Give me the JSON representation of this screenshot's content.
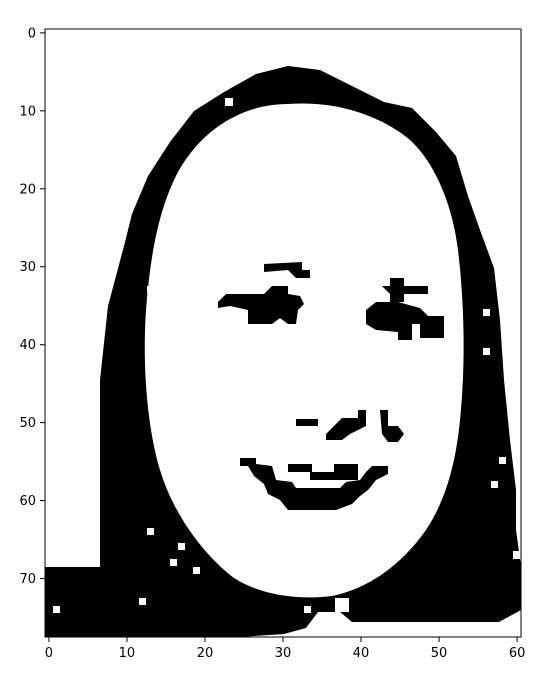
{
  "image": {
    "kind": "binary raster image shown with matplotlib imshow",
    "subject": "high-contrast black-and-white portrait of a smiling face framed by long dark hair",
    "colors": {
      "foreground": "#000000",
      "background": "#ffffff",
      "frame": "#000000"
    },
    "grid": {
      "columns": 61,
      "rows": 78
    }
  },
  "axes": {
    "x_ticks": [
      "0",
      "10",
      "20",
      "30",
      "40",
      "50",
      "60"
    ],
    "y_ticks": [
      "0",
      "10",
      "20",
      "30",
      "40",
      "50",
      "60",
      "70"
    ]
  }
}
